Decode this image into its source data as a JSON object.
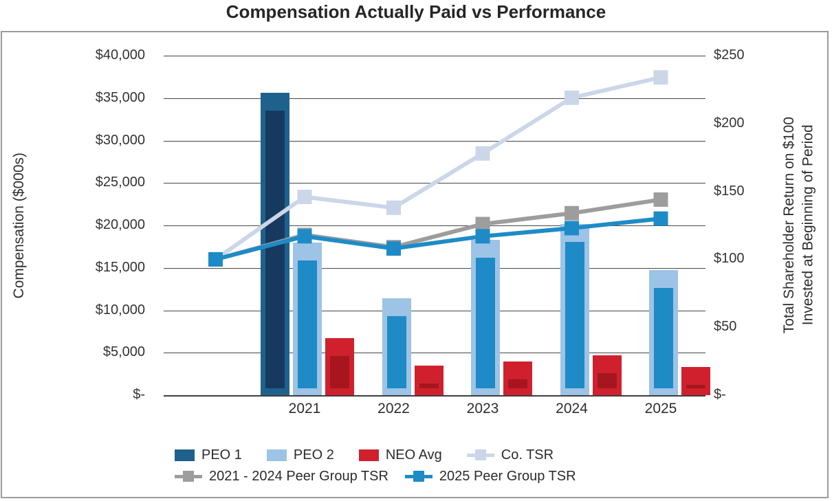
{
  "title": "Compensation Actually Paid vs Performance",
  "left_axis": {
    "title": "Compensation ($000s)",
    "ticks": [
      "$40,000",
      "$35,000",
      "$30,000",
      "$25,000",
      "$20,000",
      "$15,000",
      "$10,000",
      "$5,000",
      "$-"
    ],
    "min": 0,
    "max": 40000,
    "step": 5000
  },
  "right_axis": {
    "title": "Total Shareholder Return on $100\nInvested at Beginning of Period",
    "ticks": [
      "$250",
      "$200",
      "$150",
      "$100",
      "$50",
      "$-"
    ],
    "min": 0,
    "max": 250,
    "step": 50
  },
  "categories": [
    "",
    "2021",
    "2022",
    "2023",
    "2024",
    "2025"
  ],
  "chart_data": {
    "type": "combo-bar-line",
    "grid": "horizontal-on",
    "legend_position": "bottom",
    "left_ylim": [
      0,
      40000
    ],
    "right_ylim": [
      0,
      250
    ],
    "bar_categories": [
      "2021",
      "2022",
      "2023",
      "2024",
      "2025"
    ],
    "bar_series": [
      {
        "name": "PEO 1",
        "color": "#1f618d",
        "inner_color": "#163a5f",
        "axis": "left",
        "values": [
          35600,
          null,
          null,
          null,
          null
        ]
      },
      {
        "name": "PEO 2",
        "color": "#9dc3e6",
        "inner_color": "#1e8bc6",
        "axis": "left",
        "values": [
          18000,
          11400,
          18300,
          20200,
          14700
        ]
      },
      {
        "name": "NEO Avg",
        "color": "#d0202e",
        "inner_color": "#a5161f",
        "axis": "left",
        "values": [
          6700,
          3500,
          3950,
          4700,
          3350
        ]
      }
    ],
    "line_categories": [
      "",
      "2021",
      "2022",
      "2023",
      "2024",
      "2025"
    ],
    "line_series": [
      {
        "name": "Co. TSR",
        "color": "#cbd7e9",
        "marker": "square",
        "axis": "right",
        "values": [
          100,
          146,
          138,
          178,
          219,
          234
        ]
      },
      {
        "name": "2021 - 2024 Peer Group TSR",
        "color": "#9d9d9d",
        "marker": "square",
        "axis": "right",
        "values": [
          100,
          118,
          109,
          126,
          134,
          144
        ]
      },
      {
        "name": "2025 Peer Group TSR",
        "color": "#1e8bc6",
        "marker": "square",
        "axis": "right",
        "values": [
          100,
          117,
          108,
          117,
          123,
          130
        ]
      }
    ]
  },
  "legend": {
    "rows": [
      {
        "items": [
          {
            "label": "PEO 1"
          },
          {
            "label": "PEO 2"
          },
          {
            "label": "NEO Avg"
          },
          {
            "label": "Co. TSR"
          }
        ]
      },
      {
        "items": [
          {
            "label": "2021 - 2024 Peer Group TSR"
          },
          {
            "label": "2025 Peer Group TSR"
          }
        ]
      }
    ]
  }
}
